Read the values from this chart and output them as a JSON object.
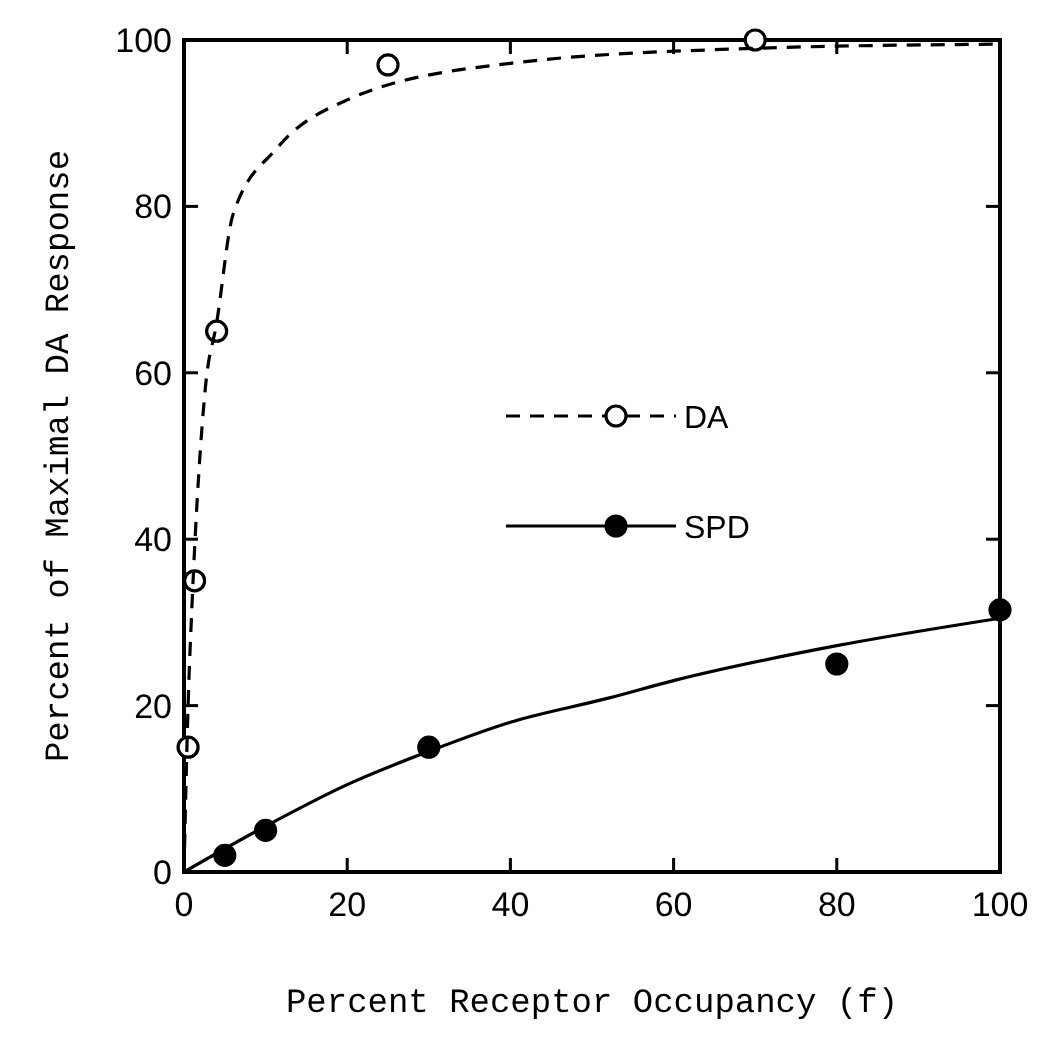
{
  "chart_data": {
    "type": "scatter",
    "xlabel": "Percent Receptor Occupancy (f)",
    "ylabel": "Percent of Maximal DA Response",
    "xlim": [
      0,
      100
    ],
    "ylim": [
      0,
      100
    ],
    "xticks": [
      0,
      20,
      40,
      60,
      80,
      100
    ],
    "yticks": [
      0,
      20,
      40,
      60,
      80,
      100
    ],
    "grid": false,
    "legend": "right",
    "marker": "circle",
    "series": [
      {
        "name": "DA",
        "color": "#ffffff",
        "x": [
          0.5,
          1.3,
          4,
          25,
          70
        ],
        "values": [
          15,
          35,
          65,
          97,
          100
        ]
      },
      {
        "type": "line",
        "color": "#000000",
        "line_style": "dashed",
        "marker": "none",
        "x": [
          0,
          0.5,
          1,
          2.6,
          4,
          6,
          11.4,
          20,
          40,
          70,
          100
        ],
        "values": [
          0,
          20,
          32.5,
          58,
          66,
          79,
          87,
          92.8,
          97.2,
          99,
          99.5
        ]
      },
      {
        "name": "SPD",
        "color": "#000000",
        "x": [
          5,
          10,
          30,
          80,
          100
        ],
        "values": [
          2,
          5,
          15,
          25,
          31.5
        ]
      },
      {
        "type": "line",
        "color": "#000000",
        "line_style": "solid",
        "marker": "none",
        "x": [
          0,
          10,
          20,
          30,
          40,
          52,
          60,
          80,
          100
        ],
        "values": [
          0,
          5.5,
          10.5,
          14.5,
          18,
          20.9,
          23,
          27.2,
          30.5
        ]
      }
    ]
  }
}
